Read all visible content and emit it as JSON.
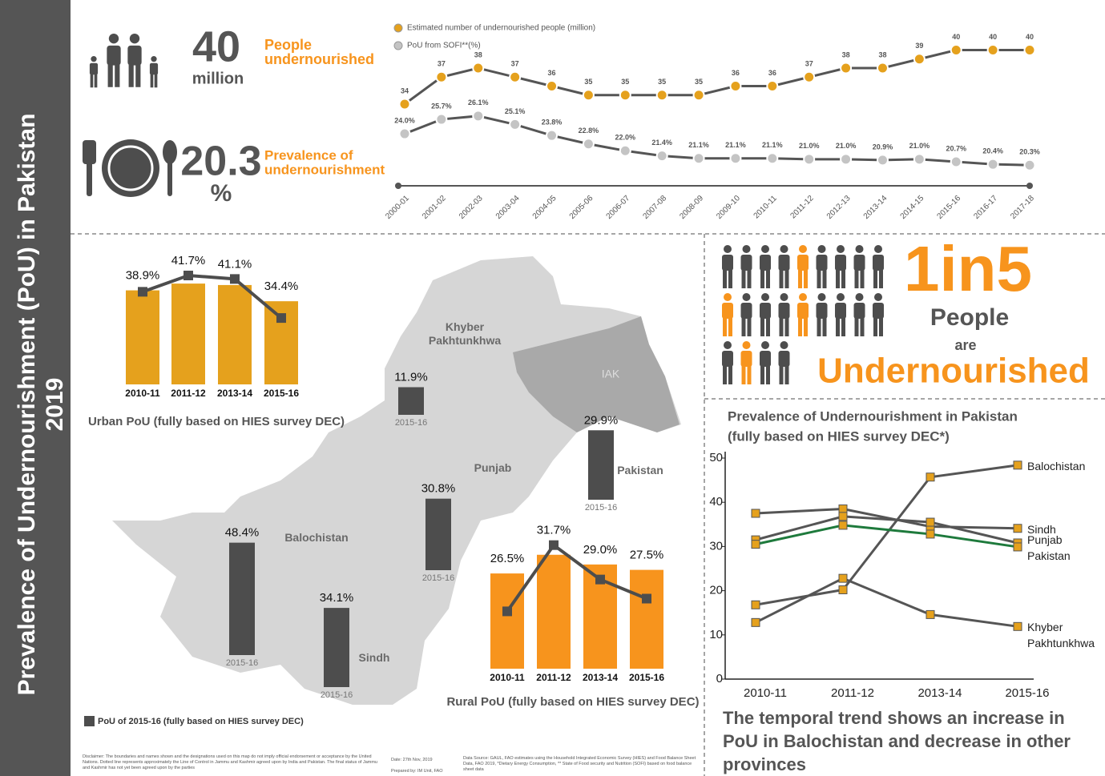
{
  "page": {
    "side_title": "Prevalence of Undernourishment (PoU) in Pakistan",
    "side_year": "2019",
    "people_number": "40",
    "people_unit": "million",
    "people_label": [
      "People",
      "undernourished"
    ],
    "pou_number": "20.3",
    "pou_unit": "%",
    "pou_label": [
      "Prevalence of",
      "undernourishment"
    ],
    "ratio": "1in5",
    "ratio_lines": [
      "People",
      "are",
      "Undernourished"
    ],
    "map_region": "IAK",
    "map_legend": "PoU of 2015-16 (fully based on HIES survey DEC)",
    "conclusion": [
      "The temporal  trend shows an increase in",
      "PoU in Balochistan and decrease in other",
      "provinces"
    ],
    "disclaimer": "Disclaimer: The boundaries and names shown and the designations used on this map do not imply official endorsement or acceptance by the United Nations. Dotted line represents approximately the Line of Control in Jammu and Kashmir agreed upon by India and Pakistan. The final status of Jammu and Kashmir has not yet been agreed upon by the parties",
    "date": "Date: 27th Nov, 2019",
    "prepared": "Prepared by: IM Unit, FAO",
    "source": "Data Source: GAUL, FAO estimates using the Household Integrated Economic Survey (HIES) and Food Balance Sheet Data, FAO 2019, *Dietary Energy Consumption, ** State of Food security and Nutrition (SOFI) based on food balance sheet data"
  },
  "chart_data": [
    {
      "type": "line",
      "legend": "top-left",
      "categories": [
        "2000-01",
        "2001-02",
        "2002-03",
        "2003-04",
        "2004-05",
        "2005-06",
        "2006-07",
        "2007-08",
        "2008-09",
        "2009-10",
        "2010-11",
        "2011-12",
        "2012-13",
        "2013-14",
        "2014-15",
        "2015-16",
        "2016-17",
        "2017-18"
      ],
      "ylim": [
        26,
        42
      ],
      "y2lim": [
        19,
        36
      ],
      "series": [
        {
          "name": "Estimated number of undernourished people (million)",
          "color": "#e5a11d",
          "values": [
            34,
            37,
            38,
            37,
            36,
            35,
            35,
            35,
            35,
            36,
            36,
            37,
            38,
            38,
            39,
            40,
            40,
            40
          ]
        },
        {
          "name": "PoU from SOFI**(%)",
          "color": "#c4c4c4",
          "axis": "y2",
          "values": [
            24.0,
            25.7,
            26.1,
            25.1,
            23.8,
            22.8,
            22.0,
            21.4,
            21.1,
            21.1,
            21.1,
            21.0,
            21.0,
            20.9,
            21.0,
            20.7,
            20.4,
            20.3
          ],
          "value_labels": [
            "24.0%",
            "25.7%",
            "26.1%",
            "25.1%",
            "23.8%",
            "22.8%",
            "22.0%",
            "21.4%",
            "21.1%",
            "21.1%",
            "21.1%",
            "21.0%",
            "21.0%",
            "20.9%",
            "21.0%",
            "20.7%",
            "20.4%",
            "20.3%"
          ]
        }
      ]
    },
    {
      "type": "combo",
      "title": "Urban PoU (fully based on HIES survey DEC)",
      "categories": [
        "2010-11",
        "2011-12",
        "2013-14",
        "2015-16"
      ],
      "values": [
        38.9,
        41.7,
        41.1,
        34.4
      ],
      "value_labels": [
        "38.9%",
        "41.7%",
        "41.1%",
        "34.4%"
      ],
      "color": "#e5a11d",
      "line_color": "#4d4d4d",
      "ylim": [
        0,
        53
      ],
      "y2lim": [
        23,
        45
      ]
    },
    {
      "type": "bar",
      "period": "2015-16",
      "color": "#4d4d4d",
      "ylim": [
        0,
        50
      ],
      "categories": [
        "Khyber Pakhtunkhwa",
        "Punjab",
        "Balochistan",
        "Sindh",
        "Pakistan"
      ],
      "values": [
        11.9,
        30.8,
        48.4,
        34.1,
        29.9
      ],
      "value_labels": [
        "11.9%",
        "30.8%",
        "48.4%",
        "34.1%",
        "29.9%"
      ]
    },
    {
      "type": "combo",
      "title": "Rural PoU (fully based on HIES survey DEC)",
      "categories": [
        "2010-11",
        "2011-12",
        "2013-14",
        "2015-16"
      ],
      "values": [
        26.5,
        31.7,
        29.0,
        27.5
      ],
      "value_labels": [
        "26.5%",
        "31.7%",
        "29.0%",
        "27.5%"
      ],
      "color": "#f7941d",
      "line_color": "#4d4d4d",
      "ylim": [
        0,
        39
      ],
      "y2lim": [
        22,
        33
      ]
    },
    {
      "type": "line",
      "legend": "line-end",
      "title": [
        "Prevalence of Undernourishment in Pakistan",
        "(fully based on HIES survey DEC*)"
      ],
      "categories": [
        "2010-11",
        "2011-12",
        "2013-14",
        "2015-16"
      ],
      "ylim": [
        0,
        50
      ],
      "yticks": [
        0,
        10,
        20,
        30,
        40,
        50
      ],
      "marker_color": "#e5a11d",
      "series": [
        {
          "name": "Balochistan",
          "color": "#555555",
          "values": [
            16.8,
            20.2,
            45.7,
            48.4
          ]
        },
        {
          "name": "Sindh",
          "color": "#555555",
          "values": [
            37.5,
            38.5,
            34.5,
            34.1
          ]
        },
        {
          "name": "Punjab",
          "color": "#555555",
          "values": [
            31.5,
            36.8,
            35.5,
            30.8
          ]
        },
        {
          "name": "Pakistan",
          "color": "#1e7a3c",
          "values": [
            30.5,
            34.8,
            32.8,
            29.9
          ]
        },
        {
          "name": "Khyber Pakhtunkhwa",
          "color": "#555555",
          "values": [
            12.8,
            22.8,
            14.6,
            11.9
          ]
        }
      ]
    }
  ]
}
